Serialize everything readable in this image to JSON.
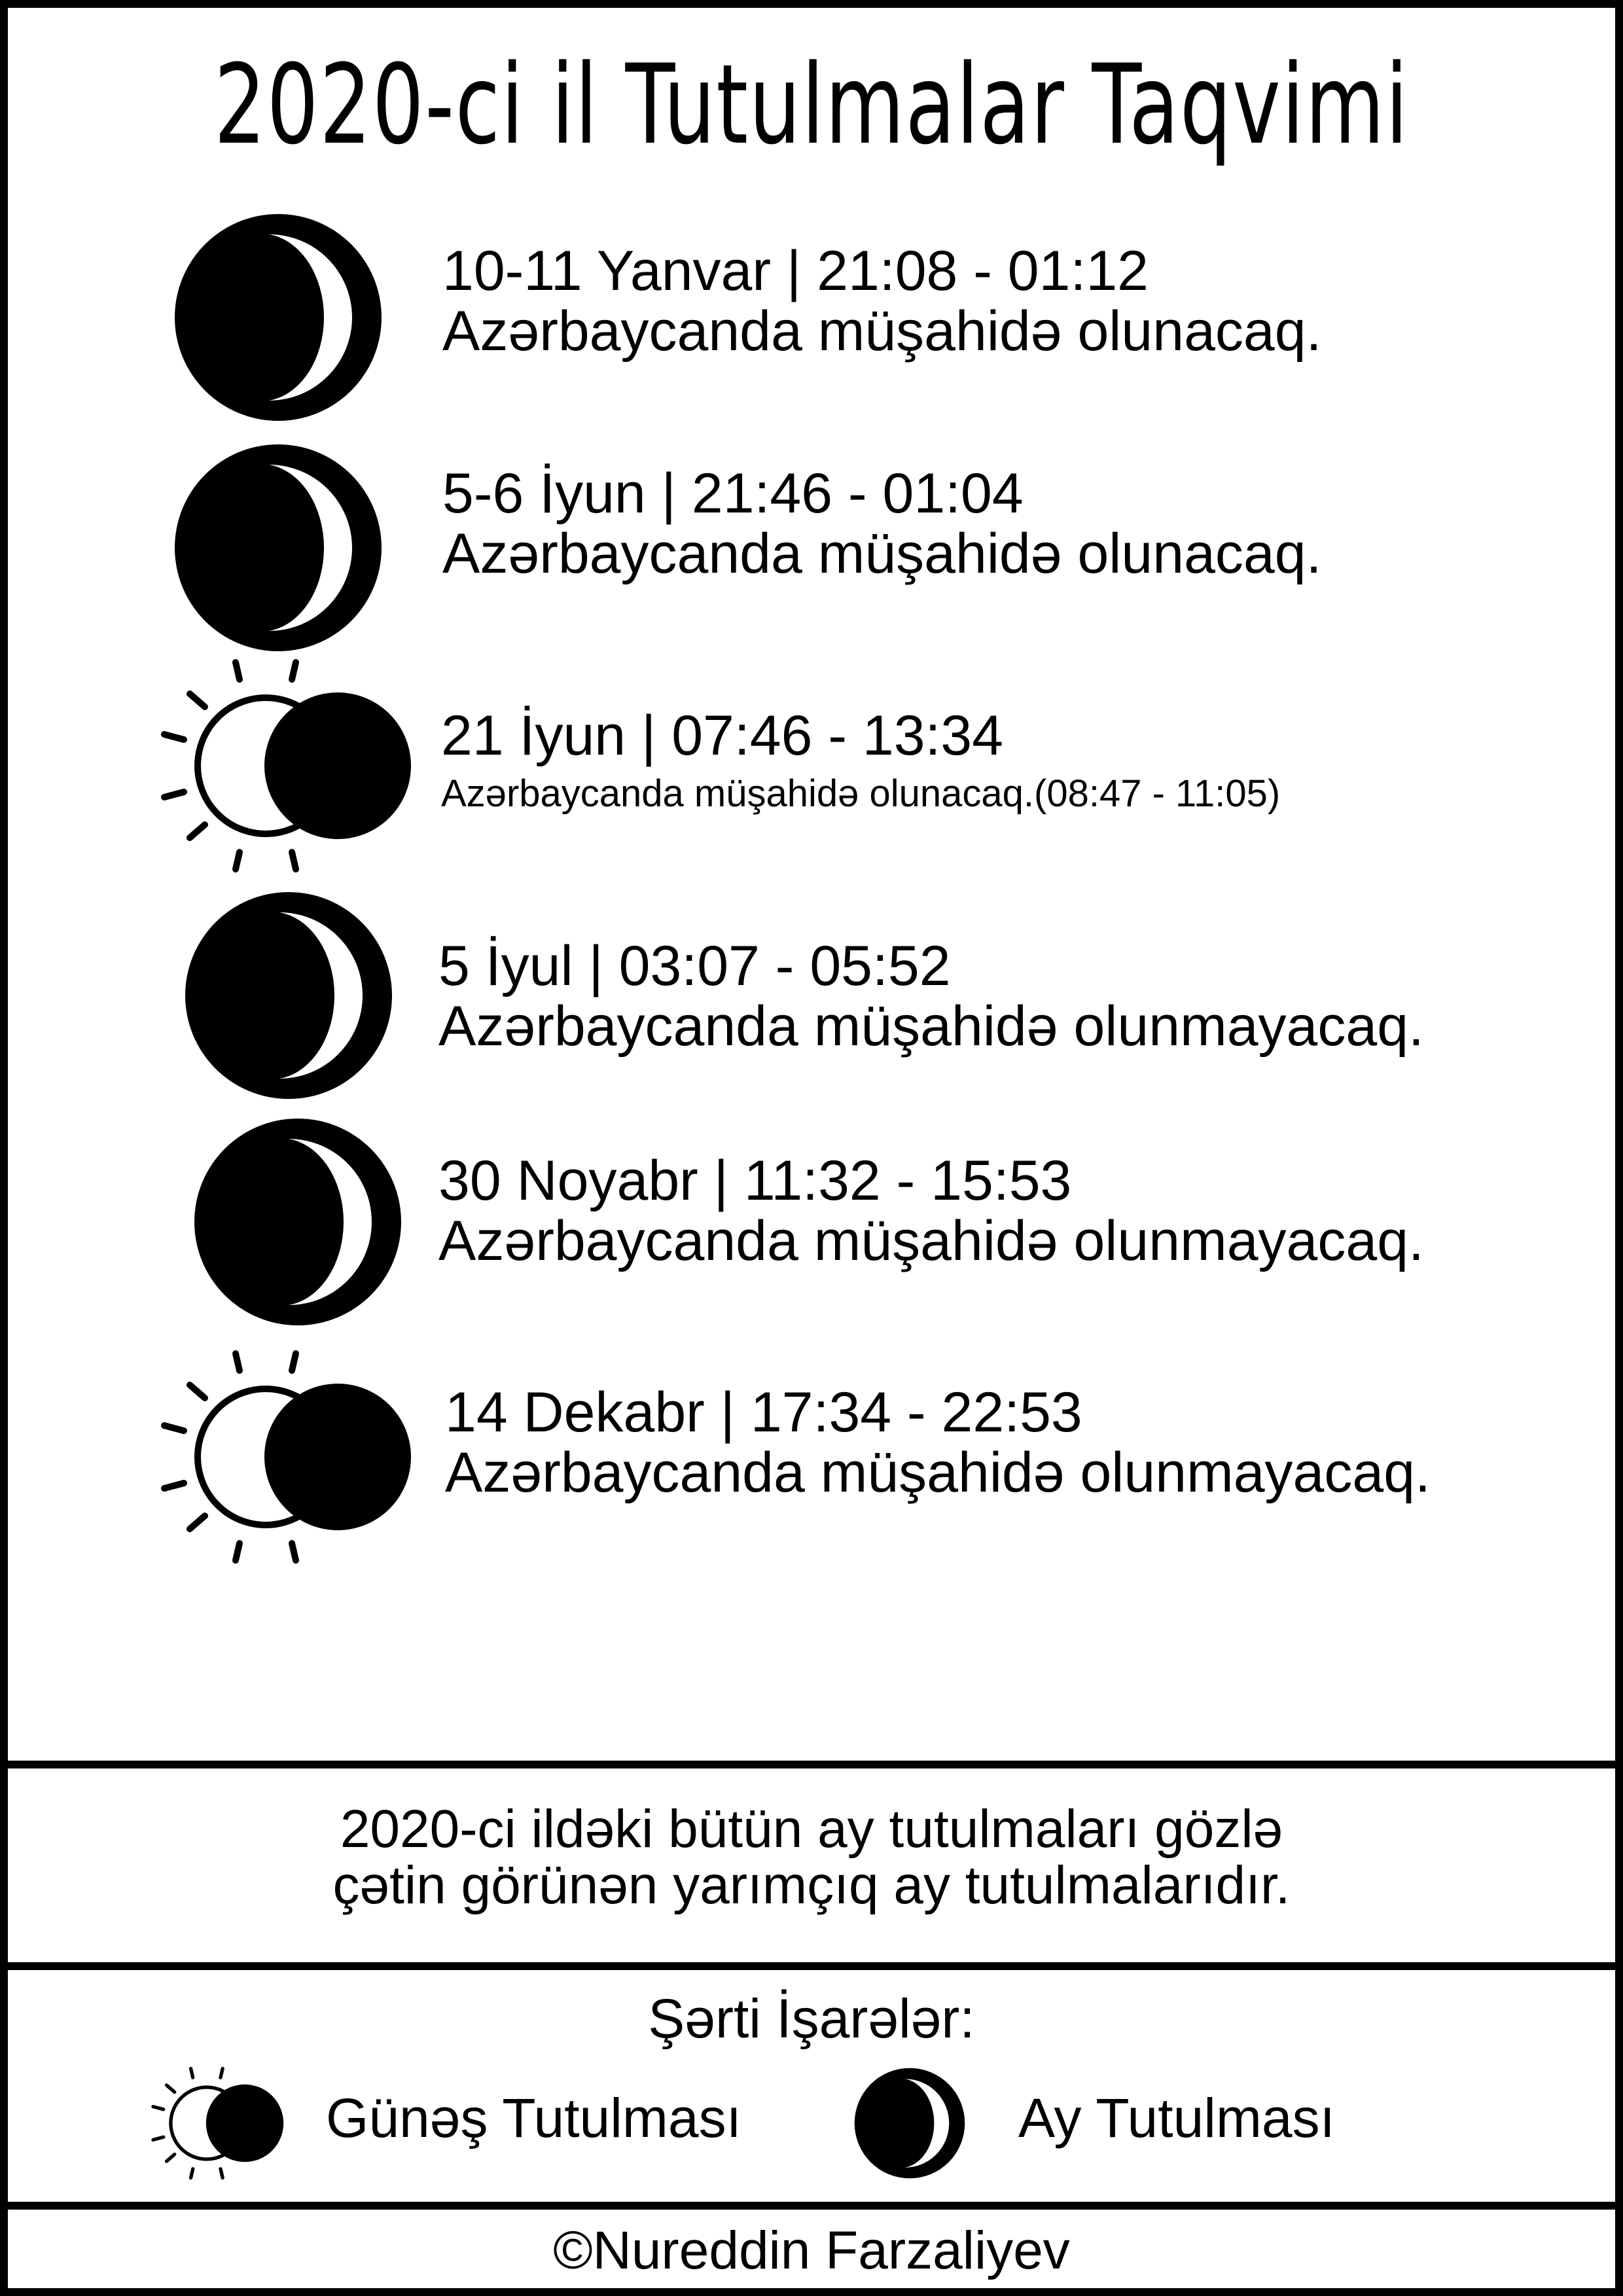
{
  "title": "2020-ci il Tutulmalar Taqvimi",
  "eclipses": [
    {
      "icon": "lunar-eclipse-icon",
      "line1": "10-11 Yanvar | 21:08 - 01:12",
      "line2": "Azərbaycanda müşahidə olunacaq."
    },
    {
      "icon": "lunar-eclipse-icon",
      "line1": "5-6 İyun | 21:46 - 01:04",
      "line2": "Azərbaycanda müşahidə olunacaq."
    },
    {
      "icon": "solar-eclipse-icon",
      "line1": "21 İyun | 07:46 - 13:34",
      "line2": "Azərbaycanda müşahidə olunacaq.(08:47 - 11:05)"
    },
    {
      "icon": "lunar-eclipse-icon",
      "line1": "5 İyul | 03:07 - 05:52",
      "line2": "Azərbaycanda müşahidə olunmayacaq."
    },
    {
      "icon": "lunar-eclipse-icon",
      "line1": "30 Noyabr | 11:32 - 15:53",
      "line2": "Azərbaycanda müşahidə olunmayacaq."
    },
    {
      "icon": "solar-eclipse-icon",
      "line1": "14 Dekabr | 17:34 - 22:53",
      "line2": "Azərbaycanda müşahidə olunmayacaq."
    }
  ],
  "note": {
    "line1": "2020-ci ildəki bütün ay tutulmaları gözlə",
    "line2": "çətin görünən yarımçıq ay tutulmalarıdır."
  },
  "legend": {
    "title": "Şərti İşarələr:",
    "solar_label": "Günəş Tutulması",
    "lunar_label": "Ay Tutulması"
  },
  "footer": "©Nureddin Farzaliyev",
  "colors": {
    "ink": "#000000",
    "paper": "#ffffff"
  }
}
